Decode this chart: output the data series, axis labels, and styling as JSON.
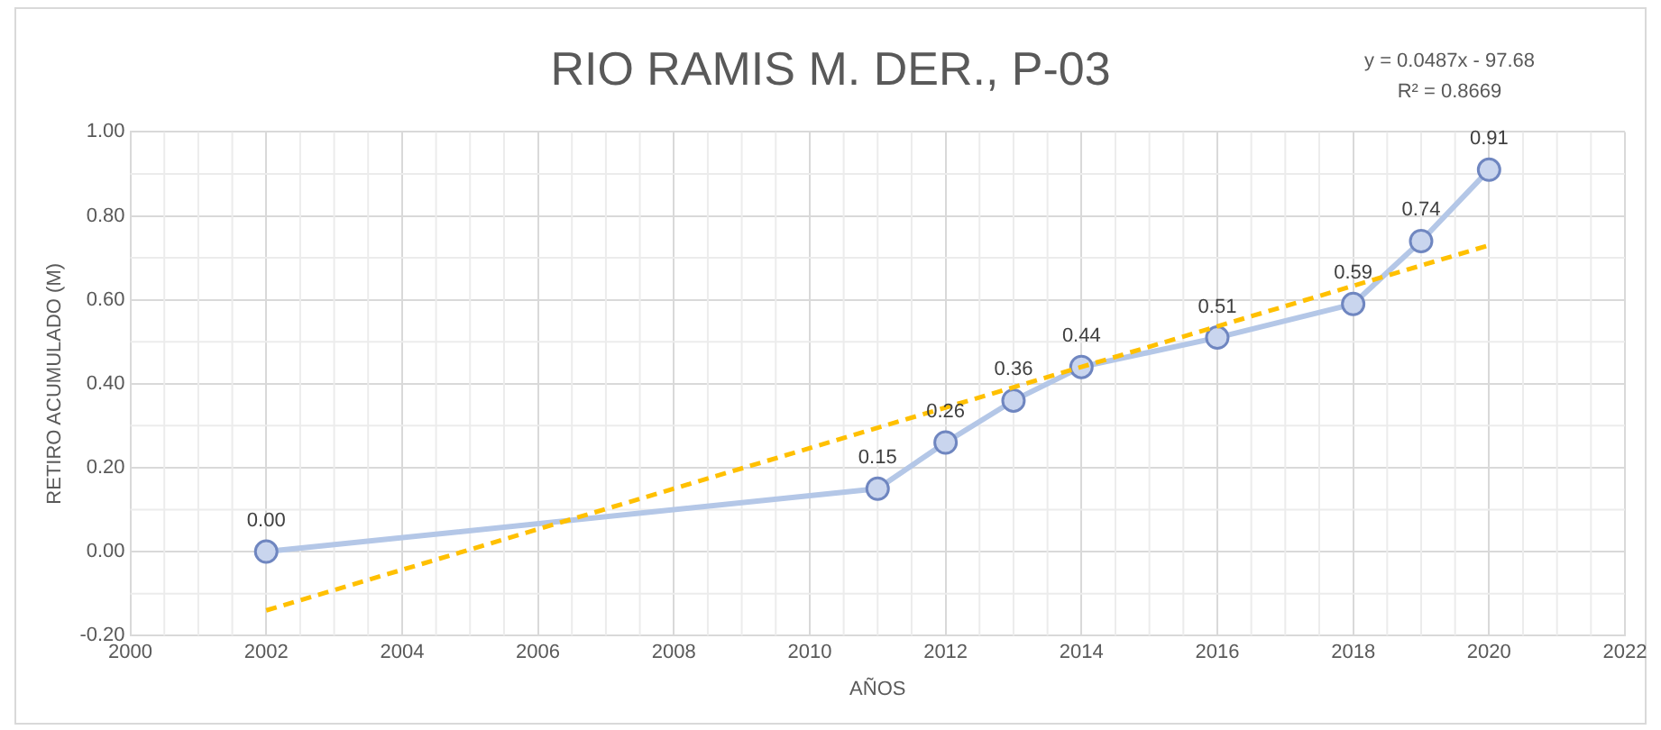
{
  "chart_data": {
    "type": "line",
    "title": "RIO RAMIS M. DER., P-03",
    "xlabel": "AÑOS",
    "ylabel": "RETIRO ACUMULADO (M)",
    "annotations": [
      "y = 0.0487x  - 97.68\nR² = 0.8669"
    ],
    "x": [
      2002,
      2011,
      2012,
      2013,
      2014,
      2016,
      2018,
      2019,
      2020
    ],
    "series": [
      {
        "color": "#b4c7e7",
        "marker": "circle",
        "values": [
          0.0,
          0.15,
          0.26,
          0.36,
          0.44,
          0.51,
          0.59,
          0.74,
          0.91
        ],
        "value_labels": [
          "0.00",
          "0.15",
          "0.26",
          "0.36",
          "0.44",
          "0.51",
          "0.59",
          "0.74",
          "0.91"
        ]
      },
      {
        "type": "line",
        "color": "#ffc000",
        "x": [
          2002,
          2020
        ],
        "values": [
          -0.14,
          0.73
        ],
        "line_style": "dashed",
        "marker": "none"
      }
    ],
    "xlim": [
      2000,
      2022
    ],
    "xticks": [
      2000,
      2002,
      2004,
      2006,
      2008,
      2010,
      2012,
      2014,
      2016,
      2018,
      2020,
      2022
    ],
    "ylim": [
      -0.2,
      1.0
    ],
    "yticks": [
      {
        "value": -0.2,
        "label": "-0.20"
      },
      {
        "value": 0,
        "label": "0.00"
      },
      {
        "value": 0.2,
        "label": "0.20"
      },
      {
        "value": 0.4,
        "label": "0.40"
      },
      {
        "value": 0.6,
        "label": "0.60"
      },
      {
        "value": 0.8,
        "label": "0.80"
      },
      {
        "value": 1.0,
        "label": "1.00"
      }
    ],
    "grid": true,
    "legend": false
  }
}
